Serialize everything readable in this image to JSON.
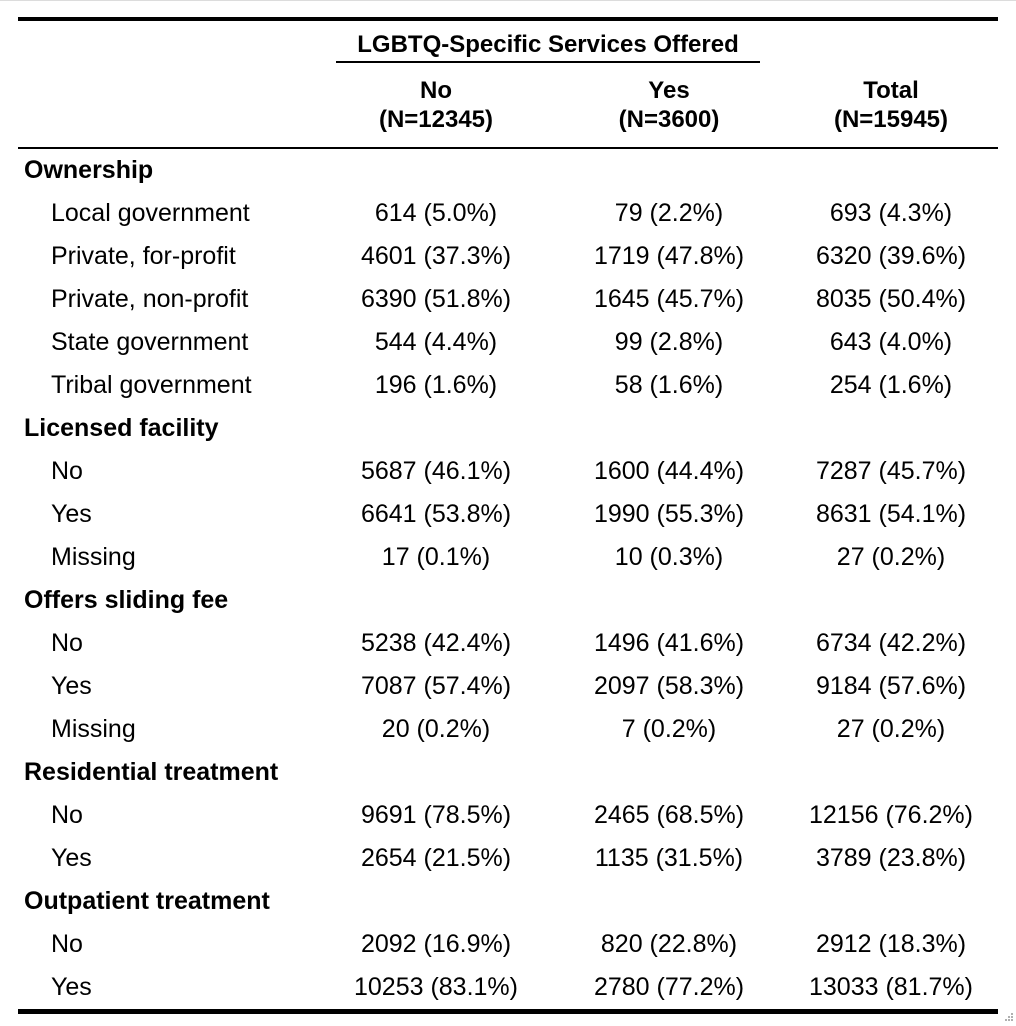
{
  "header": {
    "spanner": "LGBTQ-Specific Services Offered",
    "columns": [
      {
        "label": "No",
        "n": "(N=12345)"
      },
      {
        "label": "Yes",
        "n": "(N=3600)"
      },
      {
        "label": "Total",
        "n": "(N=15945)"
      }
    ]
  },
  "groups": [
    {
      "title": "Ownership",
      "rows": [
        {
          "label": "Local government",
          "no": "614 (5.0%)",
          "yes": "79 (2.2%)",
          "total": "693 (4.3%)"
        },
        {
          "label": "Private, for-profit",
          "no": "4601 (37.3%)",
          "yes": "1719 (47.8%)",
          "total": "6320 (39.6%)"
        },
        {
          "label": "Private, non-profit",
          "no": "6390 (51.8%)",
          "yes": "1645 (45.7%)",
          "total": "8035 (50.4%)"
        },
        {
          "label": "State government",
          "no": "544 (4.4%)",
          "yes": "99 (2.8%)",
          "total": "643 (4.0%)"
        },
        {
          "label": "Tribal government",
          "no": "196 (1.6%)",
          "yes": "58 (1.6%)",
          "total": "254 (1.6%)"
        }
      ]
    },
    {
      "title": "Licensed facility",
      "rows": [
        {
          "label": "No",
          "no": "5687 (46.1%)",
          "yes": "1600 (44.4%)",
          "total": "7287 (45.7%)"
        },
        {
          "label": "Yes",
          "no": "6641 (53.8%)",
          "yes": "1990 (55.3%)",
          "total": "8631 (54.1%)"
        },
        {
          "label": "Missing",
          "no": "17 (0.1%)",
          "yes": "10 (0.3%)",
          "total": "27 (0.2%)"
        }
      ]
    },
    {
      "title": "Offers sliding fee",
      "rows": [
        {
          "label": "No",
          "no": "5238 (42.4%)",
          "yes": "1496 (41.6%)",
          "total": "6734 (42.2%)"
        },
        {
          "label": "Yes",
          "no": "7087 (57.4%)",
          "yes": "2097 (58.3%)",
          "total": "9184 (57.6%)"
        },
        {
          "label": "Missing",
          "no": "20 (0.2%)",
          "yes": "7 (0.2%)",
          "total": "27 (0.2%)"
        }
      ]
    },
    {
      "title": "Residential treatment",
      "rows": [
        {
          "label": "No",
          "no": "9691 (78.5%)",
          "yes": "2465 (68.5%)",
          "total": "12156 (76.2%)"
        },
        {
          "label": "Yes",
          "no": "2654 (21.5%)",
          "yes": "1135 (31.5%)",
          "total": "3789 (23.8%)"
        }
      ]
    },
    {
      "title": "Outpatient treatment",
      "rows": [
        {
          "label": "No",
          "no": "2092 (16.9%)",
          "yes": "820 (22.8%)",
          "total": "2912 (18.3%)"
        },
        {
          "label": "Yes",
          "no": "10253 (83.1%)",
          "yes": "2780 (77.2%)",
          "total": "13033 (81.7%)"
        }
      ]
    }
  ]
}
